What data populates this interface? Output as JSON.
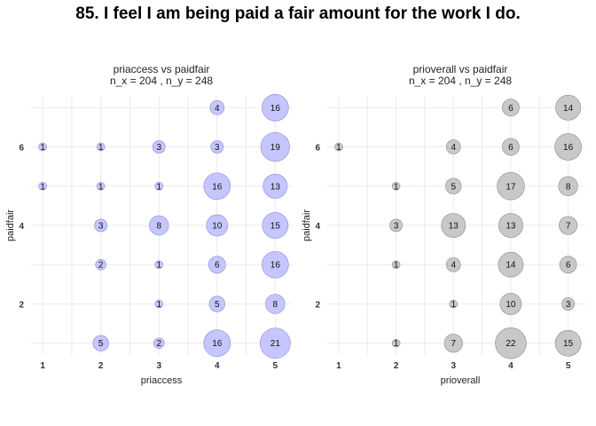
{
  "title": "85. I feel I am being paid a fair amount for the work I do.",
  "chart_data": [
    {
      "type": "scatter",
      "title": "priaccess vs paidfair",
      "subtitle": "n_x = 204 , n_y = 248",
      "xlabel": "priaccess",
      "ylabel": "paidfair",
      "x_ticks": [
        1,
        2,
        3,
        4,
        5
      ],
      "y_ticks": [
        2,
        4,
        6
      ],
      "xlim": [
        0.8,
        5.3
      ],
      "ylim": [
        0.7,
        7.3
      ],
      "color": "#c6c6ff",
      "stroke": "#8b8bd6",
      "points": [
        {
          "x": 4,
          "y": 7,
          "n": 4
        },
        {
          "x": 5,
          "y": 7,
          "n": 16
        },
        {
          "x": 1,
          "y": 6,
          "n": 1
        },
        {
          "x": 2,
          "y": 6,
          "n": 1
        },
        {
          "x": 3,
          "y": 6,
          "n": 3
        },
        {
          "x": 4,
          "y": 6,
          "n": 3
        },
        {
          "x": 5,
          "y": 6,
          "n": 19
        },
        {
          "x": 1,
          "y": 5,
          "n": 1
        },
        {
          "x": 2,
          "y": 5,
          "n": 1
        },
        {
          "x": 3,
          "y": 5,
          "n": 1
        },
        {
          "x": 4,
          "y": 5,
          "n": 16
        },
        {
          "x": 5,
          "y": 5,
          "n": 13
        },
        {
          "x": 2,
          "y": 4,
          "n": 3
        },
        {
          "x": 3,
          "y": 4,
          "n": 8
        },
        {
          "x": 4,
          "y": 4,
          "n": 10
        },
        {
          "x": 5,
          "y": 4,
          "n": 15
        },
        {
          "x": 2,
          "y": 3,
          "n": 2
        },
        {
          "x": 3,
          "y": 3,
          "n": 1
        },
        {
          "x": 4,
          "y": 3,
          "n": 6
        },
        {
          "x": 5,
          "y": 3,
          "n": 16
        },
        {
          "x": 3,
          "y": 2,
          "n": 1
        },
        {
          "x": 4,
          "y": 2,
          "n": 5
        },
        {
          "x": 5,
          "y": 2,
          "n": 8
        },
        {
          "x": 2,
          "y": 1,
          "n": 5
        },
        {
          "x": 3,
          "y": 1,
          "n": 2
        },
        {
          "x": 4,
          "y": 1,
          "n": 16
        },
        {
          "x": 5,
          "y": 1,
          "n": 21
        }
      ]
    },
    {
      "type": "scatter",
      "title": "prioverall vs paidfair",
      "subtitle": "n_x = 204 , n_y = 248",
      "xlabel": "prioverall",
      "ylabel": "paidfair",
      "x_ticks": [
        1,
        2,
        3,
        4,
        5
      ],
      "y_ticks": [
        2,
        4,
        6
      ],
      "xlim": [
        0.8,
        5.3
      ],
      "ylim": [
        0.7,
        7.3
      ],
      "color": "#c8c8c8",
      "stroke": "#8c8c8c",
      "points": [
        {
          "x": 4,
          "y": 7,
          "n": 6
        },
        {
          "x": 5,
          "y": 7,
          "n": 14
        },
        {
          "x": 1,
          "y": 6,
          "n": 1
        },
        {
          "x": 3,
          "y": 6,
          "n": 4
        },
        {
          "x": 4,
          "y": 6,
          "n": 6
        },
        {
          "x": 5,
          "y": 6,
          "n": 16
        },
        {
          "x": 2,
          "y": 5,
          "n": 1
        },
        {
          "x": 3,
          "y": 5,
          "n": 5
        },
        {
          "x": 4,
          "y": 5,
          "n": 17
        },
        {
          "x": 5,
          "y": 5,
          "n": 8
        },
        {
          "x": 2,
          "y": 4,
          "n": 3
        },
        {
          "x": 3,
          "y": 4,
          "n": 13
        },
        {
          "x": 4,
          "y": 4,
          "n": 13
        },
        {
          "x": 5,
          "y": 4,
          "n": 7
        },
        {
          "x": 2,
          "y": 3,
          "n": 1
        },
        {
          "x": 3,
          "y": 3,
          "n": 4
        },
        {
          "x": 4,
          "y": 3,
          "n": 14
        },
        {
          "x": 5,
          "y": 3,
          "n": 6
        },
        {
          "x": 3,
          "y": 2,
          "n": 1
        },
        {
          "x": 4,
          "y": 2,
          "n": 10
        },
        {
          "x": 5,
          "y": 2,
          "n": 3
        },
        {
          "x": 2,
          "y": 1,
          "n": 1
        },
        {
          "x": 3,
          "y": 1,
          "n": 7
        },
        {
          "x": 4,
          "y": 1,
          "n": 22
        },
        {
          "x": 5,
          "y": 1,
          "n": 15
        }
      ]
    }
  ]
}
